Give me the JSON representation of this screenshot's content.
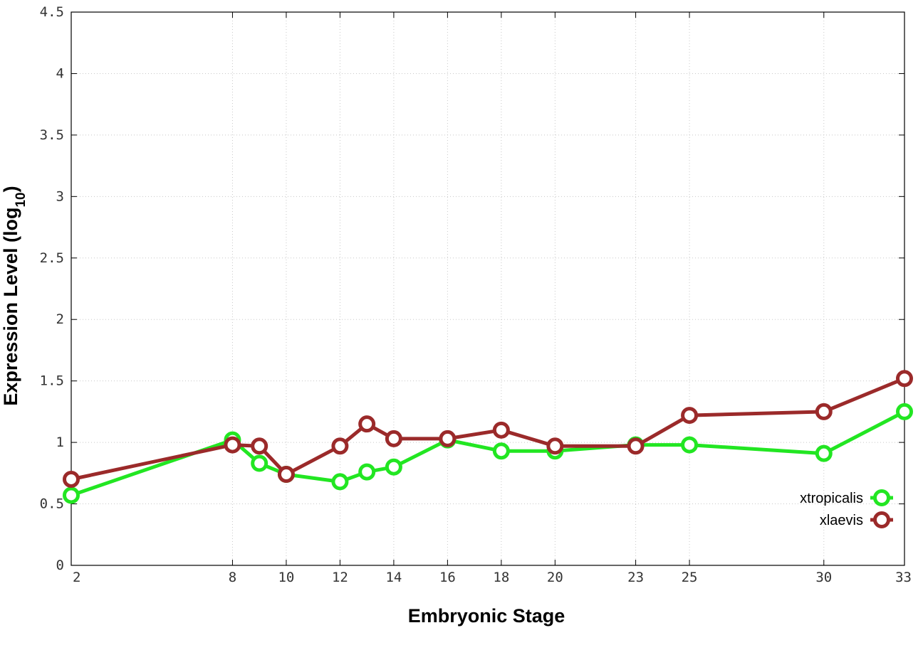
{
  "chart_data": {
    "type": "line",
    "xlabel": "Embryonic Stage",
    "ylabel": "Expression Level (log",
    "ylabel_subscript": "10",
    "ylabel_suffix": ")",
    "x": [
      2,
      8,
      9,
      10,
      12,
      13,
      14,
      16,
      18,
      20,
      23,
      25,
      30,
      33
    ],
    "xtick_labels": [
      "2",
      "8",
      "10",
      "12",
      "14",
      "16",
      "18",
      "20",
      "23",
      "25",
      "30",
      "33"
    ],
    "xtick_values": [
      2,
      8,
      10,
      12,
      14,
      16,
      18,
      20,
      23,
      25,
      30,
      33
    ],
    "xlim": [
      2,
      33
    ],
    "ylim": [
      0,
      4.5
    ],
    "ytick_values": [
      0,
      0.5,
      1,
      1.5,
      2,
      2.5,
      3,
      3.5,
      4,
      4.5
    ],
    "ytick_labels": [
      "0",
      "0.5",
      "1",
      "1.5",
      "2",
      "2.5",
      "3",
      "3.5",
      "4",
      "4.5"
    ],
    "grid": true,
    "legend_position": "bottom-right",
    "series": [
      {
        "name": "xtropicalis",
        "color": "#22e622",
        "values": [
          0.57,
          1.02,
          0.83,
          0.74,
          0.68,
          0.76,
          0.8,
          1.02,
          0.93,
          0.93,
          0.98,
          0.98,
          0.91,
          1.25
        ]
      },
      {
        "name": "xlaevis",
        "color": "#9b2a2a",
        "values": [
          0.7,
          0.98,
          0.97,
          0.74,
          0.97,
          1.15,
          1.03,
          1.03,
          1.1,
          0.97,
          0.97,
          1.22,
          1.25,
          1.52
        ]
      }
    ]
  }
}
